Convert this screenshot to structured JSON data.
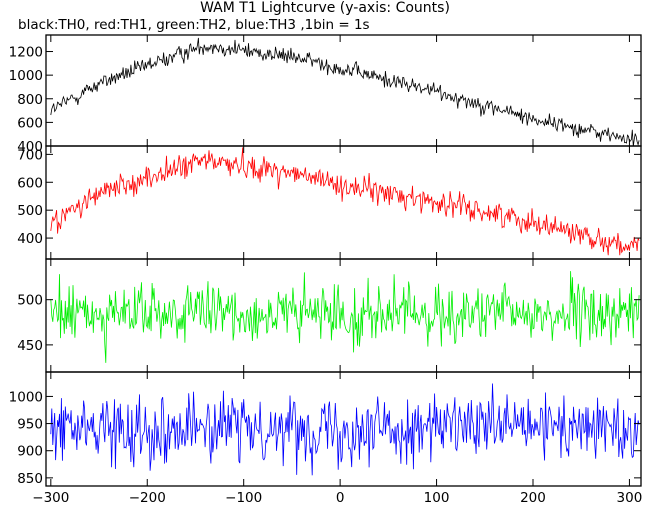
{
  "title": "WAM T1 Lightcurve (y-axis: Counts)",
  "subtitle": "black:TH0, red:TH1, green:TH2, blue:TH3 ,1bin = 1s",
  "chart_data": [
    {
      "type": "line",
      "name": "TH0",
      "color": "#000000",
      "xlim": [
        -305,
        312
      ],
      "ylim": [
        400,
        1340
      ],
      "yticks": [
        400,
        600,
        800,
        1000,
        1200
      ],
      "shape": [
        [
          -300,
          700
        ],
        [
          -250,
          930
        ],
        [
          -140,
          1255
        ],
        [
          -40,
          1140
        ],
        [
          0,
          1060
        ],
        [
          100,
          860
        ],
        [
          200,
          630
        ],
        [
          310,
          440
        ]
      ],
      "noise": 35
    },
    {
      "type": "line",
      "name": "TH1",
      "color": "#ff0000",
      "xlim": [
        -305,
        312
      ],
      "ylim": [
        325,
        730
      ],
      "yticks": [
        400,
        500,
        600,
        700
      ],
      "shape": [
        [
          -300,
          450
        ],
        [
          -250,
          560
        ],
        [
          -140,
          680
        ],
        [
          -60,
          640
        ],
        [
          0,
          590
        ],
        [
          100,
          530
        ],
        [
          200,
          460
        ],
        [
          310,
          360
        ]
      ],
      "noise": 22
    },
    {
      "type": "line",
      "name": "TH2",
      "color": "#00ee00",
      "xlim": [
        -305,
        312
      ],
      "ylim": [
        420,
        545
      ],
      "yticks": [
        450,
        500
      ],
      "shape": [
        [
          -300,
          484
        ],
        [
          310,
          484
        ]
      ],
      "noise": 16
    },
    {
      "type": "line",
      "name": "TH3",
      "color": "#0000ff",
      "xlim": [
        -305,
        312
      ],
      "ylim": [
        835,
        1045
      ],
      "yticks": [
        850,
        900,
        950,
        1000
      ],
      "shape": [
        [
          -300,
          942
        ],
        [
          310,
          942
        ]
      ],
      "noise": 30
    }
  ],
  "xticks": [
    -300,
    -200,
    -100,
    0,
    100,
    200,
    300
  ]
}
